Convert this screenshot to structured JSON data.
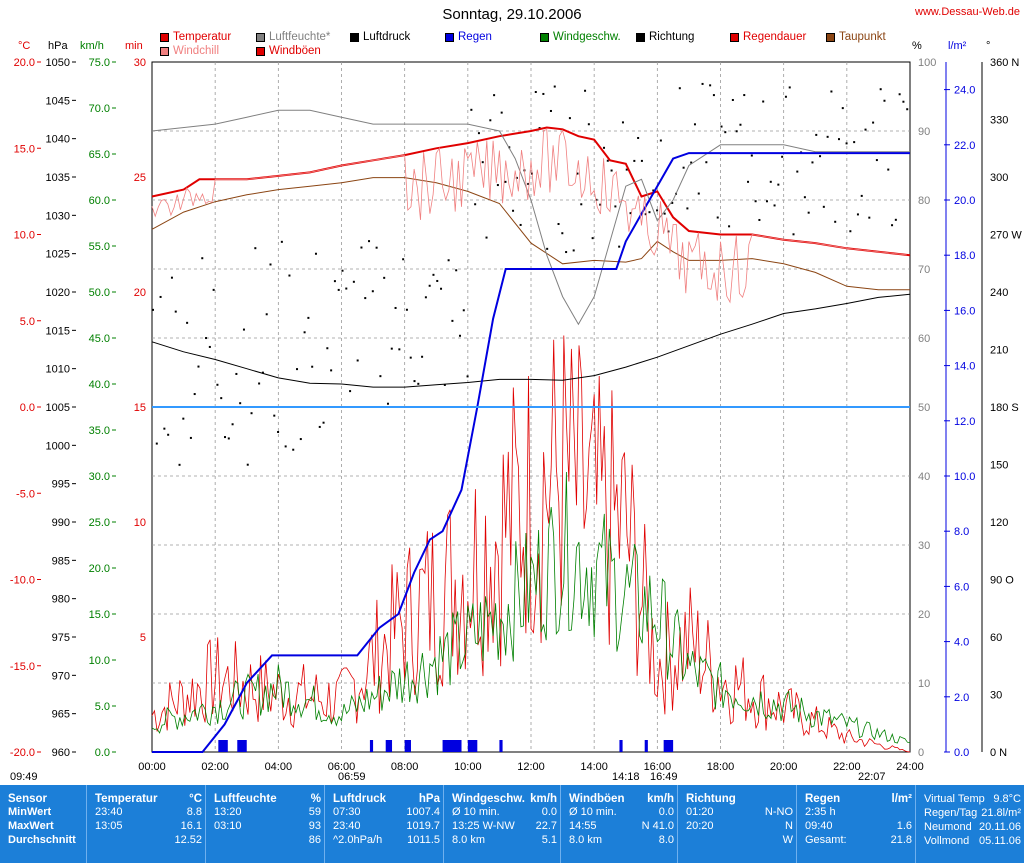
{
  "title": "Sonntag, 29.10.2006",
  "site": "www.Dessau-Web.de",
  "legend": [
    {
      "label": "Temperatur",
      "color": "#e00000"
    },
    {
      "label": "Luftfeuchte*",
      "color": "#808080"
    },
    {
      "label": "Luftdruck",
      "color": "#000000"
    },
    {
      "label": "Regen",
      "color": "#0000e0"
    },
    {
      "label": "Windgeschw.",
      "color": "#008000"
    },
    {
      "label": "Richtung",
      "color": "#000000"
    },
    {
      "label": "Regendauer",
      "color": "#e00000"
    },
    {
      "label": "Taupunkt",
      "color": "#8b4513"
    },
    {
      "label": "Windchill",
      "color": "#f08080"
    },
    {
      "label": "Windböen",
      "color": "#e00000"
    }
  ],
  "axis_units": {
    "temp": "°C",
    "press": "hPa",
    "wind": "km/h",
    "min": "min",
    "hum": "%",
    "rain": "l/m²",
    "dir": "°"
  },
  "bottom": {
    "sunrise": "09:49",
    "t1": "06:59",
    "moon1": "14:18",
    "t2": "16:49",
    "moon2": "22:07"
  },
  "chart_data": {
    "type": "line",
    "x_ticks": [
      "00:00",
      "02:00",
      "04:00",
      "06:00",
      "08:00",
      "10:00",
      "12:00",
      "14:00",
      "16:00",
      "18:00",
      "20:00",
      "22:00",
      "24:00"
    ],
    "axes": {
      "temp": {
        "ticks": [
          "20.0",
          "15.0",
          "10.0",
          "5.0",
          "0.0",
          "-5.0",
          "-10.0",
          "-15.0",
          "-20.0"
        ],
        "ylim": [
          -20,
          20
        ]
      },
      "pressure": {
        "ticks": [
          "1050",
          "1045",
          "1040",
          "1035",
          "1030",
          "1025",
          "1020",
          "1015",
          "1010",
          "1005",
          "1000",
          "995",
          "990",
          "985",
          "980",
          "975",
          "970",
          "965",
          "960"
        ],
        "ylim": [
          960,
          1050
        ]
      },
      "wind": {
        "ticks": [
          "75.0",
          "70.0",
          "65.0",
          "60.0",
          "55.0",
          "50.0",
          "45.0",
          "40.0",
          "35.0",
          "30.0",
          "25.0",
          "20.0",
          "15.0",
          "10.0",
          "5.0",
          "0.0"
        ],
        "ylim": [
          0,
          75
        ]
      },
      "minutes": {
        "ticks": [
          "30",
          "25",
          "20",
          "15",
          "10",
          "5"
        ],
        "ylim": [
          0,
          30
        ]
      },
      "humidity": {
        "ticks": [
          "100",
          "90",
          "80",
          "70",
          "60",
          "50",
          "40",
          "30",
          "20",
          "10",
          "0"
        ],
        "ylim": [
          0,
          100
        ]
      },
      "rain": {
        "ticks": [
          "24.0",
          "22.0",
          "20.0",
          "18.0",
          "16.0",
          "14.0",
          "12.0",
          "10.0",
          "8.0",
          "6.0",
          "4.0",
          "2.0",
          "0.0"
        ],
        "ylim": [
          0,
          25
        ]
      },
      "direction": {
        "ticks": [
          "360 N",
          "330",
          "300",
          "270 W",
          "240",
          "210",
          "180 S",
          "150",
          "120",
          "90 O",
          "60",
          "30",
          "0 N"
        ],
        "ylim": [
          0,
          360
        ]
      }
    },
    "series": [
      {
        "name": "Temperatur",
        "color": "#e00000",
        "x": [
          0,
          1,
          1.5,
          3,
          4,
          5,
          6,
          7,
          8,
          9,
          10,
          11,
          12,
          12.5,
          13,
          13.5,
          14,
          14.5,
          15,
          15.5,
          16,
          16.5,
          17,
          18,
          19,
          20,
          21,
          22,
          23,
          24
        ],
        "y": [
          12.2,
          12.6,
          13.2,
          13.2,
          13.4,
          13.6,
          14.0,
          14.3,
          14.6,
          15.0,
          15.3,
          15.7,
          16.0,
          16.2,
          16.1,
          15.7,
          15.5,
          14.3,
          14.1,
          12.2,
          12.5,
          11.0,
          10.2,
          10.0,
          10.0,
          9.7,
          9.5,
          9.2,
          9.0,
          8.8
        ]
      },
      {
        "name": "Taupunkt",
        "color": "#8b4513",
        "x": [
          0,
          1,
          2,
          3,
          4,
          5,
          6,
          7,
          8,
          9,
          10,
          11,
          12,
          13,
          14,
          15,
          15.5,
          16,
          16.5,
          17,
          18,
          19,
          20,
          21,
          22,
          23,
          24
        ],
        "y": [
          10.3,
          11.3,
          11.9,
          12.3,
          12.6,
          12.8,
          13.0,
          13.3,
          13.3,
          13.0,
          12.5,
          11.8,
          9.5,
          8.3,
          8.5,
          8.4,
          8.6,
          9.6,
          9.0,
          8.5,
          8.5,
          8.6,
          8.3,
          7.8,
          7.0,
          6.8,
          6.8
        ]
      },
      {
        "name": "Luftfeuchte*",
        "color": "#808080",
        "x": [
          0,
          2,
          3,
          4,
          5,
          6,
          7,
          8,
          9,
          10,
          11,
          11.5,
          12,
          12.5,
          13,
          13.5,
          14,
          14.5,
          15,
          15.5,
          16,
          16.5,
          17,
          18,
          19,
          20,
          21,
          22,
          23,
          24
        ],
        "y": [
          90,
          91,
          92,
          93,
          93,
          92,
          91,
          91,
          91,
          91,
          90,
          86,
          80,
          72,
          66,
          62,
          66,
          74,
          82,
          83,
          77,
          80,
          85,
          88,
          88,
          88,
          87,
          87,
          87,
          87
        ]
      },
      {
        "name": "Luftdruck",
        "color": "#000000",
        "x": [
          0,
          1,
          2,
          3,
          4,
          5,
          6,
          7,
          8,
          9,
          10,
          11,
          12,
          13,
          14,
          15,
          16,
          17,
          18,
          19,
          20,
          21,
          22,
          23,
          24
        ],
        "y": [
          1013.5,
          1012.2,
          1011.2,
          1010.0,
          1008.8,
          1008.1,
          1008.0,
          1007.6,
          1007.6,
          1007.9,
          1008.2,
          1008.6,
          1008.6,
          1008.5,
          1009.1,
          1010.2,
          1011.5,
          1013.0,
          1014.5,
          1015.8,
          1017.2,
          1017.8,
          1018.5,
          1019.3,
          1019.7
        ]
      },
      {
        "name": "Regen",
        "color": "#0000e0",
        "x": [
          0,
          1.6,
          2.3,
          3.0,
          3.8,
          4.5,
          5.5,
          6.5,
          7.2,
          7.8,
          8.3,
          8.8,
          9.2,
          9.8,
          10.3,
          10.8,
          11.2,
          12.0,
          13.0,
          14.0,
          14.7,
          15.0,
          15.5,
          16.0,
          16.5,
          17.0,
          18.0,
          19.0,
          20.0,
          21.0,
          22.0,
          23.0,
          24.0
        ],
        "y": [
          0,
          0,
          1.0,
          2.5,
          3.5,
          3.5,
          3.5,
          3.5,
          4.5,
          5.0,
          6.5,
          7.7,
          8.0,
          9.5,
          12.5,
          15.7,
          17.5,
          17.5,
          17.5,
          17.5,
          17.5,
          18.5,
          19.5,
          20.5,
          21.5,
          21.7,
          21.7,
          21.7,
          21.7,
          21.7,
          21.7,
          21.7,
          21.7
        ]
      },
      {
        "name": "Regendauer",
        "color": "#3399ff",
        "x": [
          0,
          24
        ],
        "y": [
          15,
          15
        ]
      }
    ],
    "wind_avg": {
      "x": [
        0,
        2,
        4,
        6,
        8,
        10,
        12,
        13,
        14,
        15,
        16,
        17,
        18,
        19,
        20,
        21,
        22,
        23,
        24
      ],
      "y": [
        3,
        5,
        7,
        4,
        8,
        12,
        18,
        22,
        20,
        17,
        15,
        9,
        7,
        6,
        5,
        4,
        3,
        2,
        1
      ]
    },
    "wind_gust": {
      "x": [
        0,
        2,
        4,
        6,
        8,
        10,
        12,
        13,
        14,
        15,
        16,
        17,
        18,
        19,
        20,
        21,
        22,
        23,
        24
      ],
      "y": [
        5,
        10,
        8,
        7,
        18,
        25,
        35,
        38,
        32,
        30,
        12,
        15,
        10,
        8,
        6,
        4,
        2,
        1,
        0
      ]
    }
  },
  "table": [
    {
      "head": "Sensor",
      "unit": "",
      "rows": [
        [
          "MinWert",
          ""
        ],
        [
          "MaxWert",
          ""
        ],
        [
          "Durchschnitt",
          ""
        ]
      ]
    },
    {
      "head": "Temperatur",
      "unit": "°C",
      "rows": [
        [
          "23:40",
          "8.8"
        ],
        [
          "13:05",
          "16.1"
        ],
        [
          "",
          "12.52"
        ]
      ]
    },
    {
      "head": "Luftfeuchte",
      "unit": "%",
      "rows": [
        [
          "13:20",
          "59"
        ],
        [
          "03:10",
          "93"
        ],
        [
          "",
          "86"
        ]
      ]
    },
    {
      "head": "Luftdruck",
      "unit": "hPa",
      "rows": [
        [
          "07:30",
          "1007.4"
        ],
        [
          "23:40",
          "1019.7"
        ],
        [
          "^2.0hPa/h",
          "1011.5"
        ]
      ]
    },
    {
      "head": "Windgeschw.",
      "unit": "km/h",
      "rows": [
        [
          "Ø 10 min.",
          "0.0"
        ],
        [
          "13:25  W-NW",
          "22.7"
        ],
        [
          "8.0 km",
          "5.1"
        ]
      ]
    },
    {
      "head": "Windböen",
      "unit": "km/h",
      "rows": [
        [
          "Ø 10 min.",
          "0.0"
        ],
        [
          "14:55",
          "N 41.0"
        ],
        [
          "8.0 km",
          "8.0"
        ]
      ]
    },
    {
      "head": "Richtung",
      "unit": "",
      "rows": [
        [
          "01:20",
          "N-NO"
        ],
        [
          "20:20",
          "N"
        ],
        [
          "",
          "W"
        ]
      ]
    },
    {
      "head": "Regen",
      "unit": "l/m²",
      "rows": [
        [
          "2:35 h",
          ""
        ],
        [
          "09:40",
          "1.6"
        ],
        [
          "Gesamt:",
          "21.8"
        ]
      ]
    },
    {
      "head": "",
      "unit": "",
      "rows": [
        [
          "Virtual Temp",
          "9.8°C"
        ],
        [
          "Regen/Tag",
          "21.8l/m²"
        ],
        [
          "Neumond",
          "20.11.06"
        ],
        [
          "Vollmond",
          "05.11.06"
        ]
      ]
    }
  ]
}
